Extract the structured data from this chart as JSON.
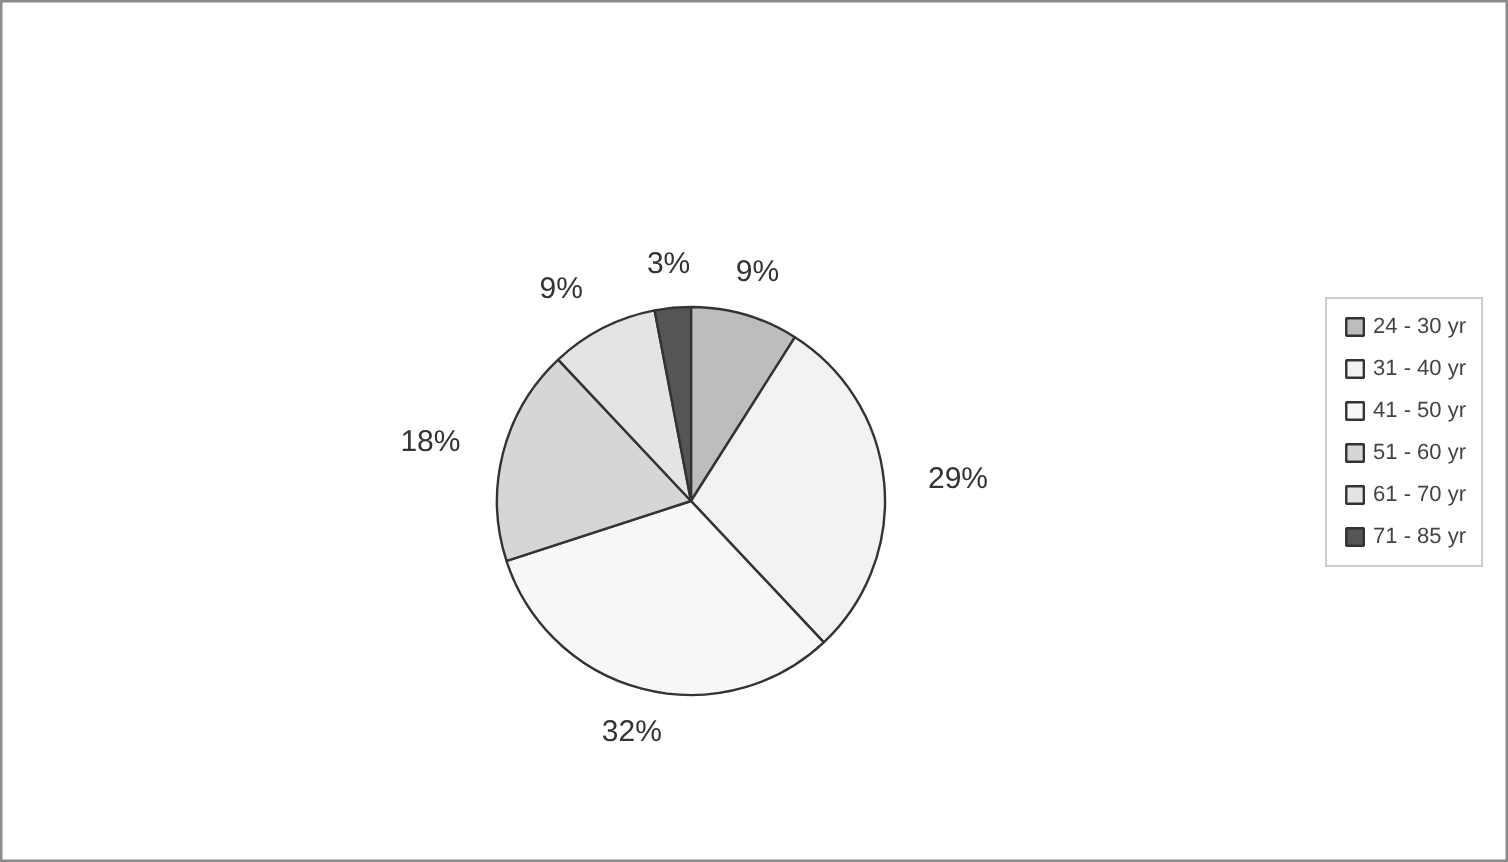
{
  "chart_data": {
    "type": "pie",
    "categories": [
      "24 - 30 yr",
      "31 - 40 yr",
      "41 - 50 yr",
      "51 - 60 yr",
      "61 - 70 yr",
      "71 - 85 yr"
    ],
    "values": [
      9,
      29,
      32,
      18,
      9,
      3
    ],
    "value_labels": [
      "9%",
      "29%",
      "32%",
      "18%",
      "9%",
      "3%"
    ],
    "colors": [
      "#bdbdbd",
      "#f2f2f2",
      "#f7f7f7",
      "#d6d6d6",
      "#e4e4e4",
      "#555555"
    ],
    "legend": "right"
  }
}
